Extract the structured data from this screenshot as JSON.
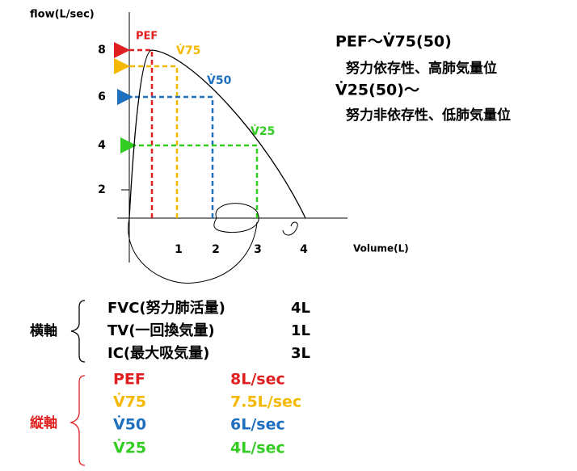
{
  "graph": {
    "y_label": "flow(L/sec)",
    "x_label": "Volume(L)",
    "yticks": [
      "8",
      "6",
      "4",
      "2"
    ],
    "xticks": [
      "1",
      "2",
      "3",
      "4"
    ],
    "markers": [
      "PEF",
      "V̇75",
      "V̇50",
      "V̇25"
    ]
  },
  "notes": [
    "PEF～V̇75(50)",
    "努力依存性、高肺気量位",
    "V̇25(50)～",
    "努力非依存性、低肺気量位"
  ],
  "horizontal_axis": {
    "label": "横軸",
    "rows": [
      {
        "name": "FVC(努力肺活量)",
        "value": "4L"
      },
      {
        "name": "TV(一回換気量)",
        "value": "1L"
      },
      {
        "name": "IC(最大吸気量)",
        "value": "3L"
      }
    ]
  },
  "vertical_axis": {
    "label": "縦軸",
    "rows": [
      {
        "name": "PEF",
        "value": "8L/sec"
      },
      {
        "name": "V̇75",
        "value": "7.5L/sec"
      },
      {
        "name": "V̇50",
        "value": "6L/sec"
      },
      {
        "name": "V̇25",
        "value": "4L/sec"
      }
    ]
  }
}
